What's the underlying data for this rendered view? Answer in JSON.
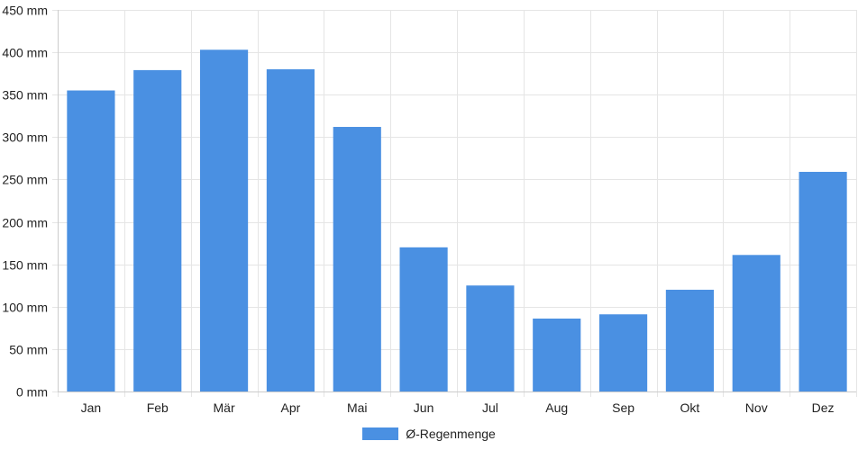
{
  "chart_data": {
    "type": "bar",
    "categories": [
      "Jan",
      "Feb",
      "Mär",
      "Apr",
      "Mai",
      "Jun",
      "Jul",
      "Aug",
      "Sep",
      "Okt",
      "Nov",
      "Dez"
    ],
    "series": [
      {
        "name": "Ø-Regenmenge",
        "values": [
          355,
          379,
          403,
          380,
          312,
          170,
          125,
          86,
          91,
          120,
          161,
          259
        ]
      }
    ],
    "ylim": [
      0,
      450
    ],
    "yticks": [
      0,
      50,
      100,
      150,
      200,
      250,
      300,
      350,
      400,
      450
    ],
    "y_tick_labels": [
      "0 mm",
      "50 mm",
      "100 mm",
      "150 mm",
      "200 mm",
      "250 mm",
      "300 mm",
      "350 mm",
      "400 mm",
      "450 mm"
    ],
    "grid": true,
    "legend_position": "bottom",
    "colors": {
      "bar": "#4a90e2",
      "grid": "#e5e5e5",
      "axis": "#cccccc"
    }
  }
}
